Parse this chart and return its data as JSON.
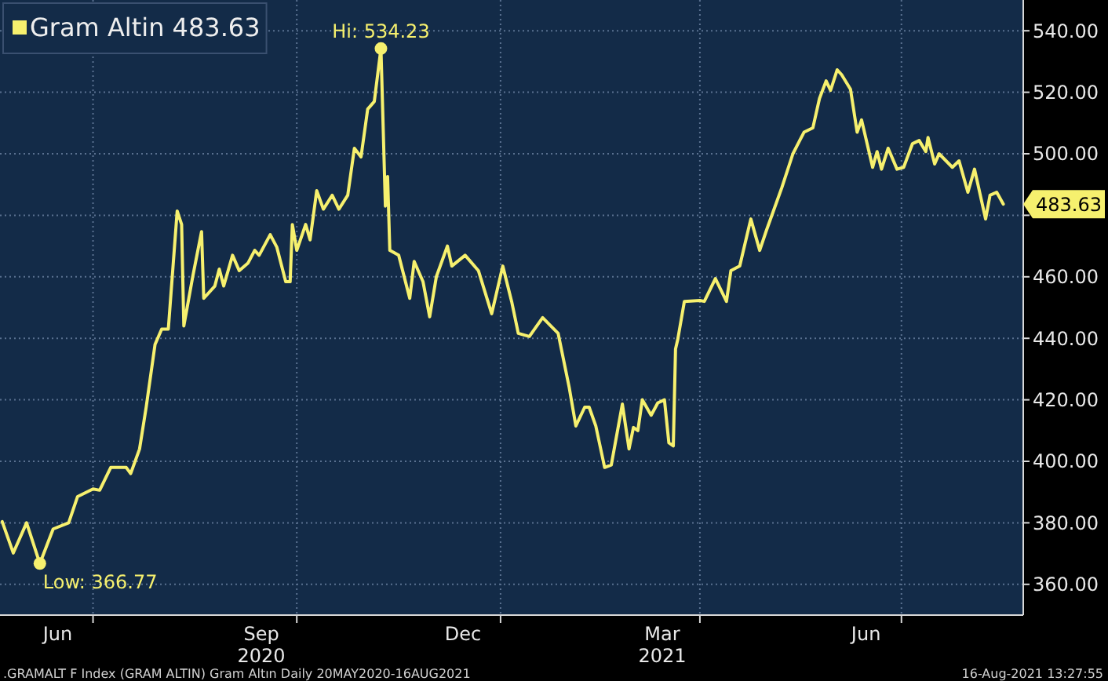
{
  "chart_data": {
    "type": "line",
    "x": [
      "2020-05-21",
      "2020-05-26",
      "2020-06-01",
      "2020-06-07",
      "2020-06-13",
      "2020-06-20",
      "2020-06-24",
      "2020-07-01",
      "2020-07-04",
      "2020-07-09",
      "2020-07-16",
      "2020-07-18",
      "2020-07-22",
      "2020-07-25",
      "2020-07-29",
      "2020-08-01",
      "2020-08-04",
      "2020-08-08",
      "2020-08-10",
      "2020-08-11",
      "2020-08-15",
      "2020-08-19",
      "2020-08-20",
      "2020-08-25",
      "2020-08-27",
      "2020-08-29",
      "2020-09-02",
      "2020-09-05",
      "2020-09-09",
      "2020-09-12",
      "2020-09-14",
      "2020-09-19",
      "2020-09-22",
      "2020-09-26",
      "2020-09-28",
      "2020-09-29",
      "2020-10-01",
      "2020-10-05",
      "2020-10-07",
      "2020-10-10",
      "2020-10-13",
      "2020-10-17",
      "2020-10-20",
      "2020-10-24",
      "2020-10-27",
      "2020-10-30",
      "2020-11-02",
      "2020-11-05",
      "2020-11-08",
      "2020-11-10",
      "2020-11-11",
      "2020-11-12",
      "2020-11-16",
      "2020-11-21",
      "2020-11-23",
      "2020-11-27",
      "2020-11-30",
      "2020-12-03",
      "2020-12-08",
      "2020-12-10",
      "2020-12-16",
      "2020-12-22",
      "2020-12-28",
      "2021-01-02",
      "2021-01-06",
      "2021-01-09",
      "2021-01-14",
      "2021-01-20",
      "2021-01-27",
      "2021-02-01",
      "2021-02-04",
      "2021-02-08",
      "2021-02-10",
      "2021-02-13",
      "2021-02-17",
      "2021-02-20",
      "2021-02-25",
      "2021-02-28",
      "2021-03-02",
      "2021-03-04",
      "2021-03-06",
      "2021-03-10",
      "2021-03-13",
      "2021-03-16",
      "2021-03-18",
      "2021-03-20",
      "2021-03-21",
      "2021-03-22",
      "2021-03-25",
      "2021-04-01",
      "2021-04-03",
      "2021-04-08",
      "2021-04-13",
      "2021-04-15",
      "2021-04-19",
      "2021-04-24",
      "2021-04-28",
      "2021-05-01",
      "2021-05-08",
      "2021-05-13",
      "2021-05-18",
      "2021-05-22",
      "2021-05-25",
      "2021-05-28",
      "2021-05-30",
      "2021-06-02",
      "2021-06-04",
      "2021-06-08",
      "2021-06-11",
      "2021-06-13",
      "2021-06-18",
      "2021-06-20",
      "2021-06-22",
      "2021-06-25",
      "2021-06-29",
      "2021-07-02",
      "2021-07-06",
      "2021-07-09",
      "2021-07-12",
      "2021-07-13",
      "2021-07-16",
      "2021-07-18",
      "2021-07-24",
      "2021-07-27",
      "2021-07-31",
      "2021-08-03",
      "2021-08-08",
      "2021-08-10",
      "2021-08-13",
      "2021-08-16"
    ],
    "series": [
      {
        "name": "Gram Altin 483.63",
        "color": "#f6f06e",
        "values": [
          380.4,
          370.2,
          380,
          366.77,
          378,
          380,
          388.5,
          391,
          390.6,
          398,
          398,
          396,
          404,
          417.6,
          438,
          443,
          443,
          481.4,
          477,
          444,
          460,
          474.7,
          453,
          457,
          462.5,
          457,
          467,
          462,
          464.5,
          468.6,
          467,
          473.7,
          469.6,
          458.4,
          458.4,
          477,
          468.6,
          477,
          472,
          488,
          482,
          486.5,
          482,
          486.5,
          501.8,
          499,
          514.5,
          517,
          534.23,
          483,
          492.6,
          468.6,
          467,
          453,
          465,
          458.4,
          447,
          460,
          470,
          463.5,
          467,
          462,
          448,
          463.5,
          452,
          441.6,
          440.6,
          446.7,
          441.6,
          424,
          411.5,
          417.6,
          417.6,
          411.5,
          398,
          398.8,
          418.6,
          404,
          411,
          410,
          420,
          415,
          419,
          420,
          406,
          405,
          436.5,
          439.6,
          452,
          452.3,
          452,
          459.4,
          452,
          462,
          463.5,
          478.8,
          468.6,
          475,
          489,
          500,
          507,
          508.4,
          518,
          523.7,
          520.6,
          527.3,
          525.7,
          521,
          507,
          511,
          495.6,
          500.7,
          495,
          501.8,
          495,
          495.6,
          503.3,
          504.3,
          500.7,
          505.3,
          496.7,
          500,
          495.6,
          497.7,
          487.5,
          495,
          478.8,
          486.5,
          487.5,
          483.63
        ]
      }
    ],
    "xlim": [
      "2020-05-20",
      "2021-08-25"
    ],
    "xticks": [
      {
        "value": "2020-06-15",
        "label": "Jun"
      },
      {
        "value": "2020-07-01",
        "label": null
      },
      {
        "value": "2020-09-15",
        "label": "Sep\n2020"
      },
      {
        "value": "2020-10-01",
        "label": null
      },
      {
        "value": "2020-12-15",
        "label": "Dec"
      },
      {
        "value": "2021-01-01",
        "label": null
      },
      {
        "value": "2021-03-15",
        "label": "Mar\n2021"
      },
      {
        "value": "2021-04-01",
        "label": null
      },
      {
        "value": "2021-06-15",
        "label": "Jun"
      },
      {
        "value": "2021-07-01",
        "label": null
      }
    ],
    "ylim": [
      350,
      550
    ],
    "yticks": [
      {
        "value": 360,
        "label": "360.00"
      },
      {
        "value": 380,
        "label": "380.00"
      },
      {
        "value": 400,
        "label": "400.00"
      },
      {
        "value": 420,
        "label": "420.00"
      },
      {
        "value": 440,
        "label": "440.00"
      },
      {
        "value": 460,
        "label": "460.00"
      },
      {
        "value": 480,
        "label": null
      },
      {
        "value": 500,
        "label": "500.00"
      },
      {
        "value": 520,
        "label": "520.00"
      },
      {
        "value": 540,
        "label": "540.00"
      }
    ],
    "grid": true,
    "legend": "top left",
    "annotations": [
      {
        "text": "Hi: 534.23",
        "x": "2020-11-08",
        "y": 534.23
      },
      {
        "text": "Low: 366.77",
        "x": "2020-06-07",
        "y": 366.77
      },
      {
        "text": "483.63",
        "x": "2021-08-16",
        "y": 483.63
      },
      ".GRAMALT F Index (GRAM ALTIN) Gram Altın  Daily 20MAY2020-16AUG2021",
      "16-Aug-2021 13:27:55"
    ]
  }
}
